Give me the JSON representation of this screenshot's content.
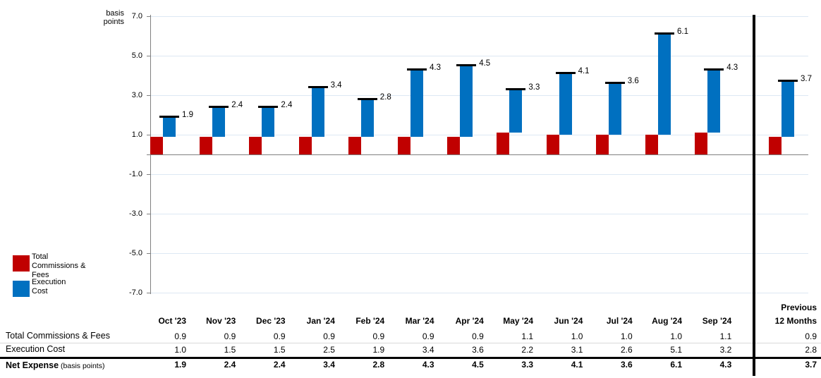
{
  "chart": {
    "y_axis_title_line1": "basis",
    "y_axis_title_line2": "points",
    "y_tick_labels": [
      "7.0",
      "5.0",
      "3.0",
      "1.0",
      "-1.0",
      "-3.0",
      "-5.0",
      "-7.0"
    ]
  },
  "legend": {
    "items": [
      {
        "label": "Total Commissions & Fees",
        "color": "#C00000"
      },
      {
        "label": "Execution Cost",
        "color": "#0070C0"
      }
    ]
  },
  "chart_data": {
    "type": "bar",
    "subtype": "stacked waterfall bars with black net-total tick markers and labels",
    "title": "",
    "xlabel": "",
    "ylabel": "basis points",
    "ylim": [
      -7.0,
      7.0
    ],
    "ytick_step": 2.0,
    "grid": true,
    "legend_position": "bottom-left outside plot",
    "categories": [
      "Oct '23",
      "Nov '23",
      "Dec '23",
      "Jan '24",
      "Feb '24",
      "Mar '24",
      "Apr '24",
      "May '24",
      "Jun '24",
      "Jul '24",
      "Aug '24",
      "Sep '24",
      "Previous 12 Months"
    ],
    "series": [
      {
        "name": "Total Commissions & Fees",
        "color": "#C00000",
        "values": [
          0.9,
          0.9,
          0.9,
          0.9,
          0.9,
          0.9,
          0.9,
          1.1,
          1.0,
          1.0,
          1.0,
          1.1,
          0.9
        ]
      },
      {
        "name": "Execution Cost",
        "color": "#0070C0",
        "values": [
          1.0,
          1.5,
          1.5,
          2.5,
          1.9,
          3.4,
          3.6,
          2.2,
          3.1,
          2.6,
          5.1,
          3.2,
          2.8
        ]
      }
    ],
    "net_totals": {
      "name": "Net Expense (basis points)",
      "marker_color": "#000000",
      "values": [
        1.9,
        2.4,
        2.4,
        3.4,
        2.8,
        4.3,
        4.5,
        3.3,
        4.1,
        3.6,
        6.1,
        4.3,
        3.7
      ]
    }
  },
  "table": {
    "month_columns": [
      "Oct '23",
      "Nov '23",
      "Dec '23",
      "Jan '24",
      "Feb '24",
      "Mar '24",
      "Apr '24",
      "May '24",
      "Jun '24",
      "Jul '24",
      "Aug '24",
      "Sep '24"
    ],
    "previous_column_line1": "Previous",
    "previous_column_line2": "12 Months",
    "rows": [
      {
        "label": "Total Commissions & Fees",
        "values": [
          "0.9",
          "0.9",
          "0.9",
          "0.9",
          "0.9",
          "0.9",
          "0.9",
          "1.1",
          "1.0",
          "1.0",
          "1.0",
          "1.1"
        ],
        "previous": "0.9"
      },
      {
        "label": "Execution Cost",
        "values": [
          "1.0",
          "1.5",
          "1.5",
          "2.5",
          "1.9",
          "3.4",
          "3.6",
          "2.2",
          "3.1",
          "2.6",
          "5.1",
          "3.2"
        ],
        "previous": "2.8"
      }
    ],
    "net_row": {
      "label": "Net Expense",
      "label_note": "(basis points)",
      "values": [
        "1.9",
        "2.4",
        "2.4",
        "3.4",
        "2.8",
        "4.3",
        "4.5",
        "3.3",
        "4.1",
        "3.6",
        "6.1",
        "4.3"
      ],
      "previous": "3.7"
    }
  }
}
